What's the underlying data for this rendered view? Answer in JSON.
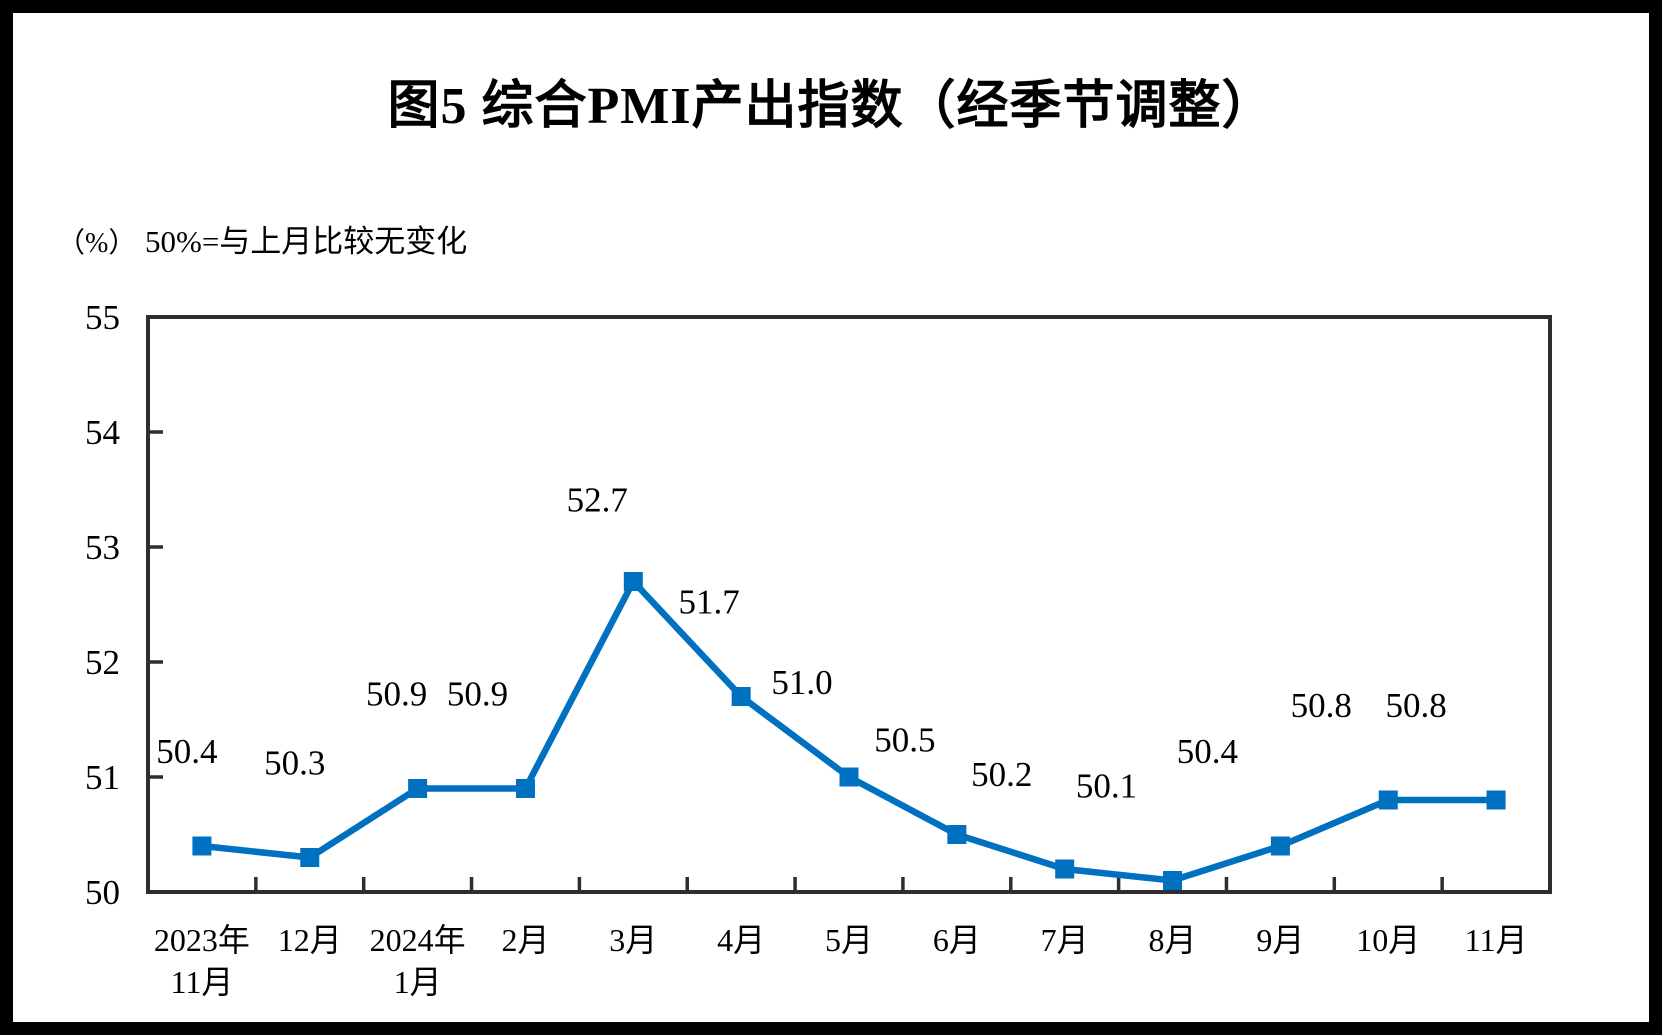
{
  "page": {
    "title": "图5  综合PMI产出指数（经季节调整）",
    "y_axis_unit": "（%）",
    "subtitle": "50%=与上月比较无变化"
  },
  "chart_data": {
    "type": "line",
    "title": "图5  综合PMI产出指数（经季节调整）",
    "subtitle": "50%=与上月比较无变化",
    "ylabel": "（%）",
    "x_labels": [
      {
        "line1": "2023年",
        "line2": "11月"
      },
      {
        "line1": "12月"
      },
      {
        "line1": "2024年",
        "line2": "1月"
      },
      {
        "line1": "2月"
      },
      {
        "line1": "3月"
      },
      {
        "line1": "4月"
      },
      {
        "line1": "5月"
      },
      {
        "line1": "6月"
      },
      {
        "line1": "7月"
      },
      {
        "line1": "8月"
      },
      {
        "line1": "9月"
      },
      {
        "line1": "10月"
      },
      {
        "line1": "11月"
      }
    ],
    "series": [
      {
        "name": "综合PMI产出指数",
        "values": [
          50.4,
          50.3,
          50.9,
          50.9,
          52.7,
          51.7,
          51.0,
          50.5,
          50.2,
          50.1,
          50.4,
          50.8,
          50.8
        ]
      }
    ],
    "data_labels": [
      "50.4",
      "50.3",
      "50.9",
      "50.9",
      "52.7",
      "51.7",
      "51.0",
      "50.5",
      "50.2",
      "50.1",
      "50.4",
      "50.8",
      "50.8"
    ],
    "ylim": [
      50,
      55
    ],
    "y_ticks": [
      "50",
      "51",
      "52",
      "53",
      "54",
      "55"
    ],
    "line_color": "#0070C0",
    "marker": "square",
    "axis_color": "#2e2e2e",
    "grid": false,
    "legend": false
  }
}
